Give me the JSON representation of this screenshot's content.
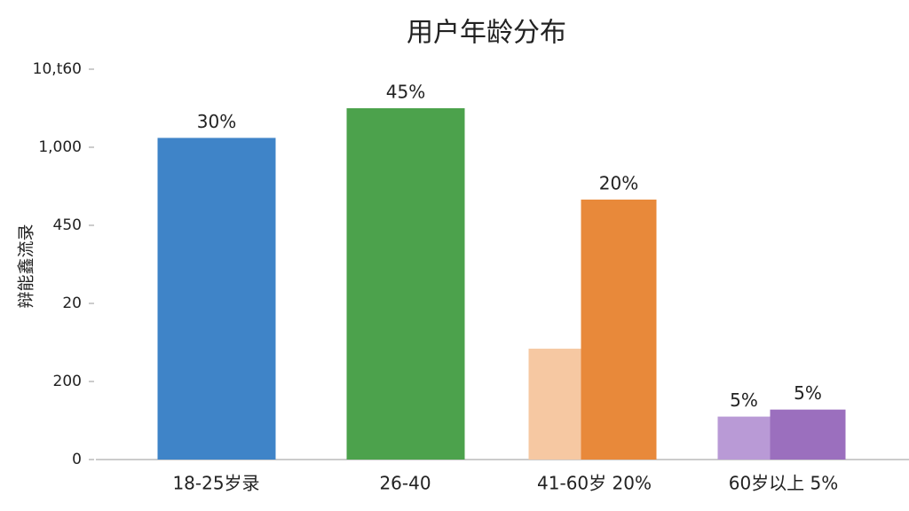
{
  "chart_data": {
    "type": "bar",
    "title": "用户年龄分布",
    "y_label": "辩能鑫流录",
    "categories": [
      "18-25岁录",
      "26-40",
      "41-60岁 20%",
      "60岁以上 5%"
    ],
    "series": [
      {
        "colors": [
          "#3f84c8",
          "#4ca24c",
          "#e8893a",
          "#9b6fbe"
        ],
        "values": [
          4.12,
          4.5,
          3.33,
          0.64
        ],
        "value_labels": [
          "30%",
          "45%",
          "20%",
          "5%"
        ]
      },
      {
        "colors": [
          null,
          null,
          "#f6c8a2",
          "#b99ad6"
        ],
        "values": [
          null,
          null,
          1.42,
          0.55
        ],
        "value_labels": [
          null,
          null,
          null,
          "5%"
        ]
      }
    ],
    "ylim": [
      0,
      5
    ],
    "yticks": [
      {
        "value": 0,
        "label": "0"
      },
      {
        "value": 1,
        "label": "200"
      },
      {
        "value": 2,
        "label": "20"
      },
      {
        "value": 3,
        "label": "450"
      },
      {
        "value": 4,
        "label": "1,000"
      },
      {
        "value": 5,
        "label": "10,t60"
      }
    ]
  }
}
